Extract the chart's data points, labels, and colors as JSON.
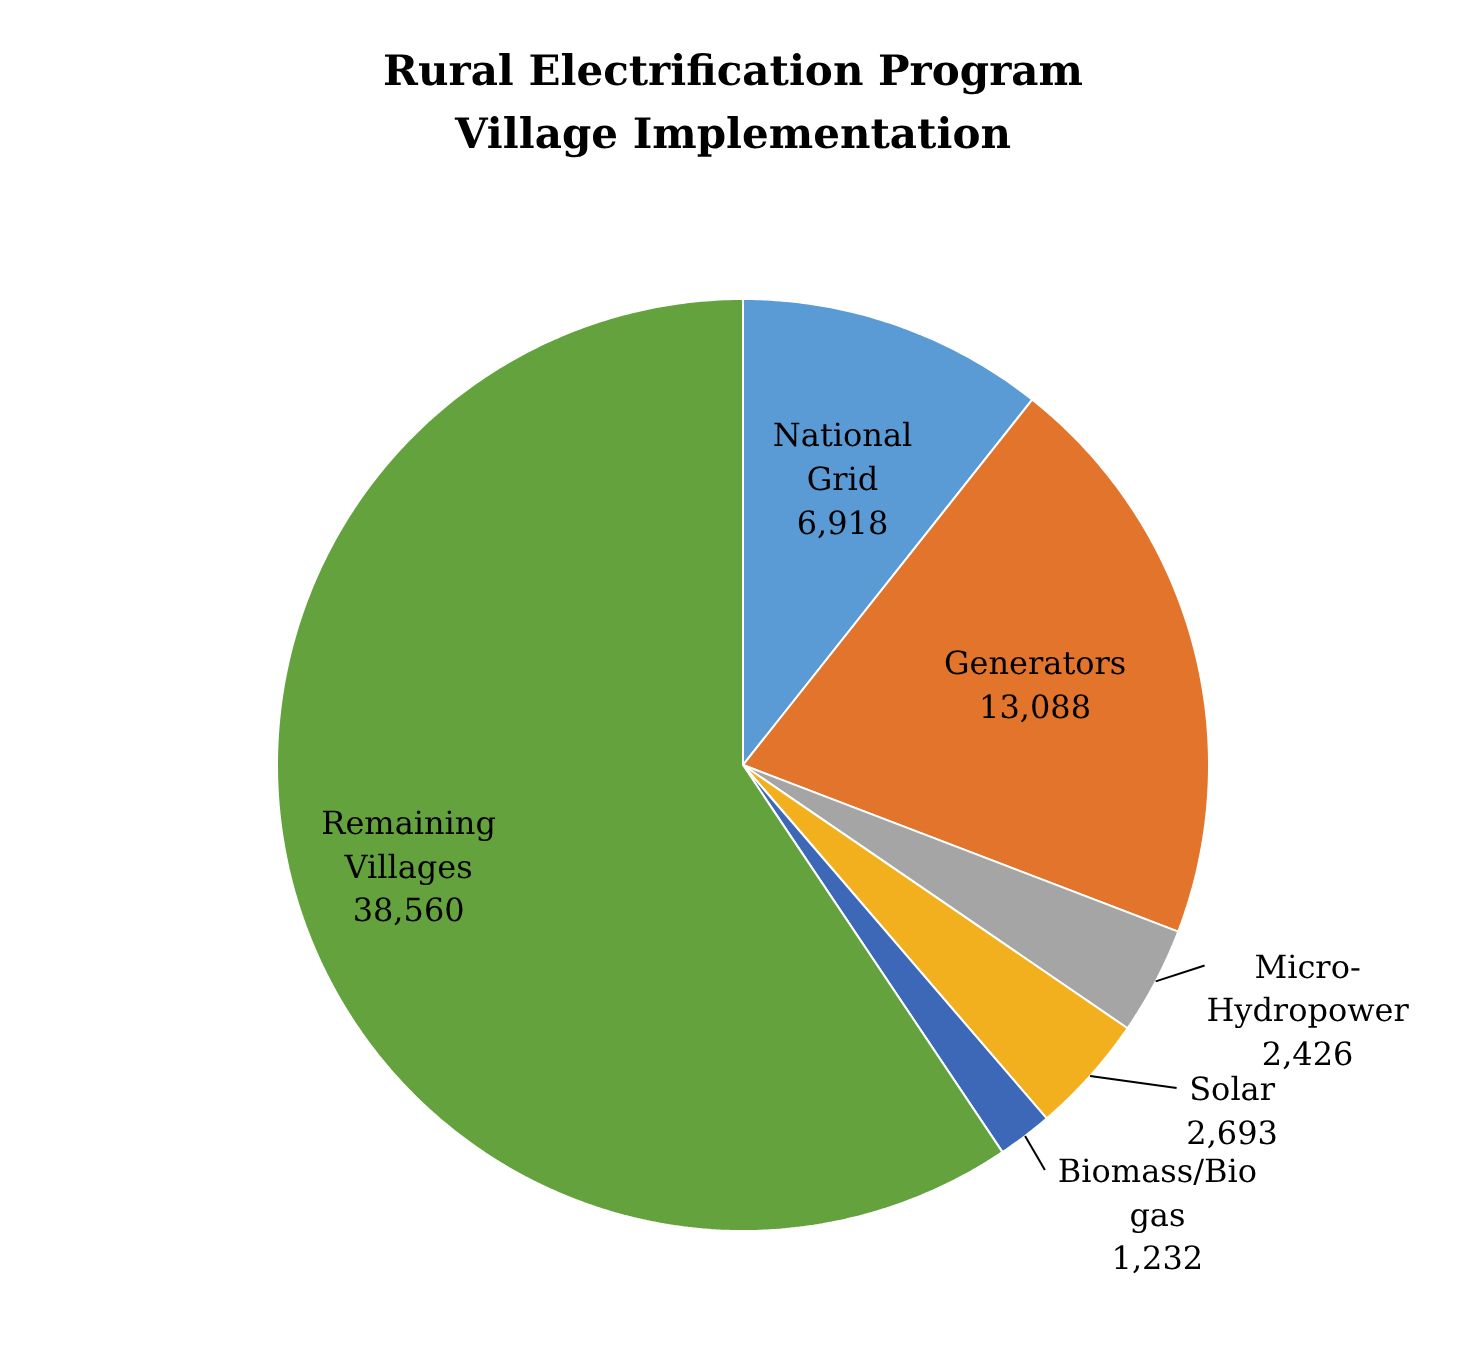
{
  "chart_data": {
    "type": "pie",
    "title": "Rural Electrification Program\nVillage Implementation",
    "categories": [
      "National Grid",
      "Generators",
      "Micro-Hydropower",
      "Solar",
      "Biomass/Bio gas",
      "Remaining Villages"
    ],
    "values": [
      6918,
      13088,
      2426,
      2693,
      1232,
      38560
    ],
    "colors": [
      "#5b9bd5",
      "#e2742b",
      "#a5a5a5",
      "#f2b01e",
      "#3d68b8",
      "#63a23c"
    ],
    "value_labels": [
      "6,918",
      "13,088",
      "2,426",
      "2,693",
      "1,232",
      "38,560"
    ]
  }
}
